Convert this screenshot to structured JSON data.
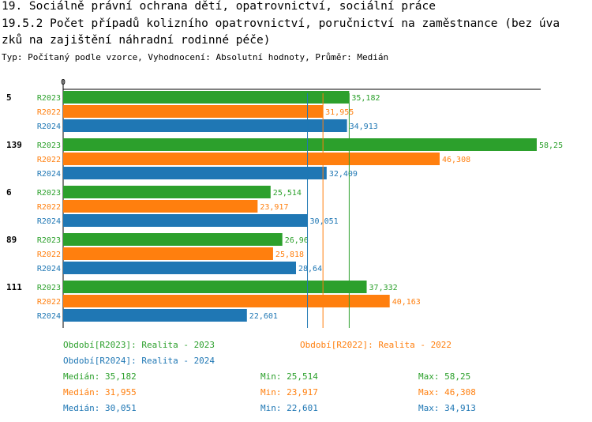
{
  "title_line1": "19. Sociálně právní ochrana dětí, opatrovnictví, sociální práce",
  "title_line2": "19.5.2 Počet případů kolizního opatrovnictví, poručnictví na zaměstnance (bez úva",
  "title_line3": "zků na zajištění náhradní rodinné péče)",
  "subtitle": "Typ: Počítaný podle vzorce, Vyhodnocení: Absolutní hodnoty, Průměr: Medián",
  "colors": {
    "R2023": "#2ca02c",
    "R2022": "#ff7f0e",
    "R2024": "#1f77b4"
  },
  "chart_data": {
    "type": "bar",
    "orientation": "horizontal",
    "x_axis_zero_label": "0",
    "xlim": [
      0,
      58.25
    ],
    "categories": [
      "5",
      "139",
      "6",
      "89",
      "111"
    ],
    "series": [
      {
        "name": "R2023",
        "values": [
          35.182,
          58.25,
          25.514,
          26.96,
          37.332
        ],
        "value_labels": [
          "35,182",
          "58,25",
          "25,514",
          "26,96",
          "37,332"
        ]
      },
      {
        "name": "R2022",
        "values": [
          31.955,
          46.308,
          23.917,
          25.818,
          40.163
        ],
        "value_labels": [
          "31,955",
          "46,308",
          "23,917",
          "25,818",
          "40,163"
        ]
      },
      {
        "name": "R2024",
        "values": [
          34.913,
          32.409,
          30.051,
          28.64,
          22.601
        ],
        "value_labels": [
          "34,913",
          "32,409",
          "30,051",
          "28,64",
          "22,601"
        ]
      }
    ],
    "reference_lines": [
      {
        "series": "R2023",
        "median": 35.182
      },
      {
        "series": "R2022",
        "median": 31.955
      },
      {
        "series": "R2024",
        "median": 30.051
      }
    ]
  },
  "legend": {
    "r2023": "Období[R2023]: Realita - 2023",
    "r2022": "Období[R2022]: Realita - 2022",
    "r2024": "Období[R2024]: Realita - 2024"
  },
  "stats": {
    "r2023": {
      "median": "Medián: 35,182",
      "min": "Min: 25,514",
      "max": "Max: 58,25"
    },
    "r2022": {
      "median": "Medián: 31,955",
      "min": "Min: 23,917",
      "max": "Max: 46,308"
    },
    "r2024": {
      "median": "Medián: 30,051",
      "min": "Min: 22,601",
      "max": "Max: 34,913"
    }
  }
}
